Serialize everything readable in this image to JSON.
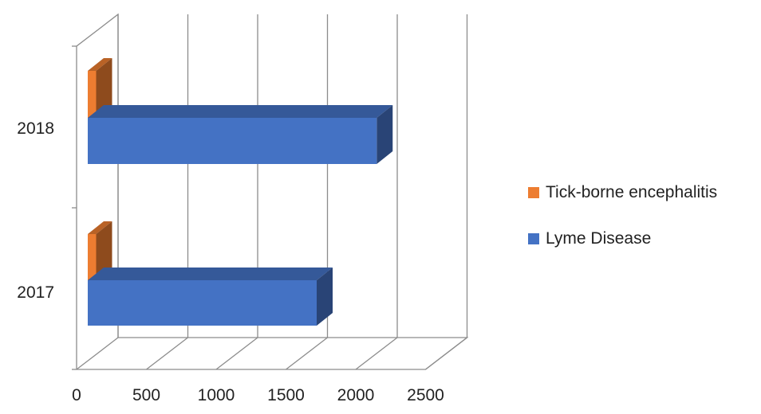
{
  "chart_data": {
    "type": "bar",
    "orientation": "horizontal",
    "style": "3d",
    "categories": [
      "2017",
      "2018"
    ],
    "series": [
      {
        "name": "Tick-borne encephalitis",
        "color": "#ED7D31",
        "values": [
          140,
          140
        ]
      },
      {
        "name": "Lyme Disease",
        "color": "#4472C4",
        "values": [
          1720,
          2150
        ]
      }
    ],
    "xlim": [
      0,
      2500
    ],
    "xticks": [
      "0",
      "500",
      "1000",
      "1500",
      "2000",
      "2500"
    ],
    "grid": true,
    "legend_position": "right"
  }
}
